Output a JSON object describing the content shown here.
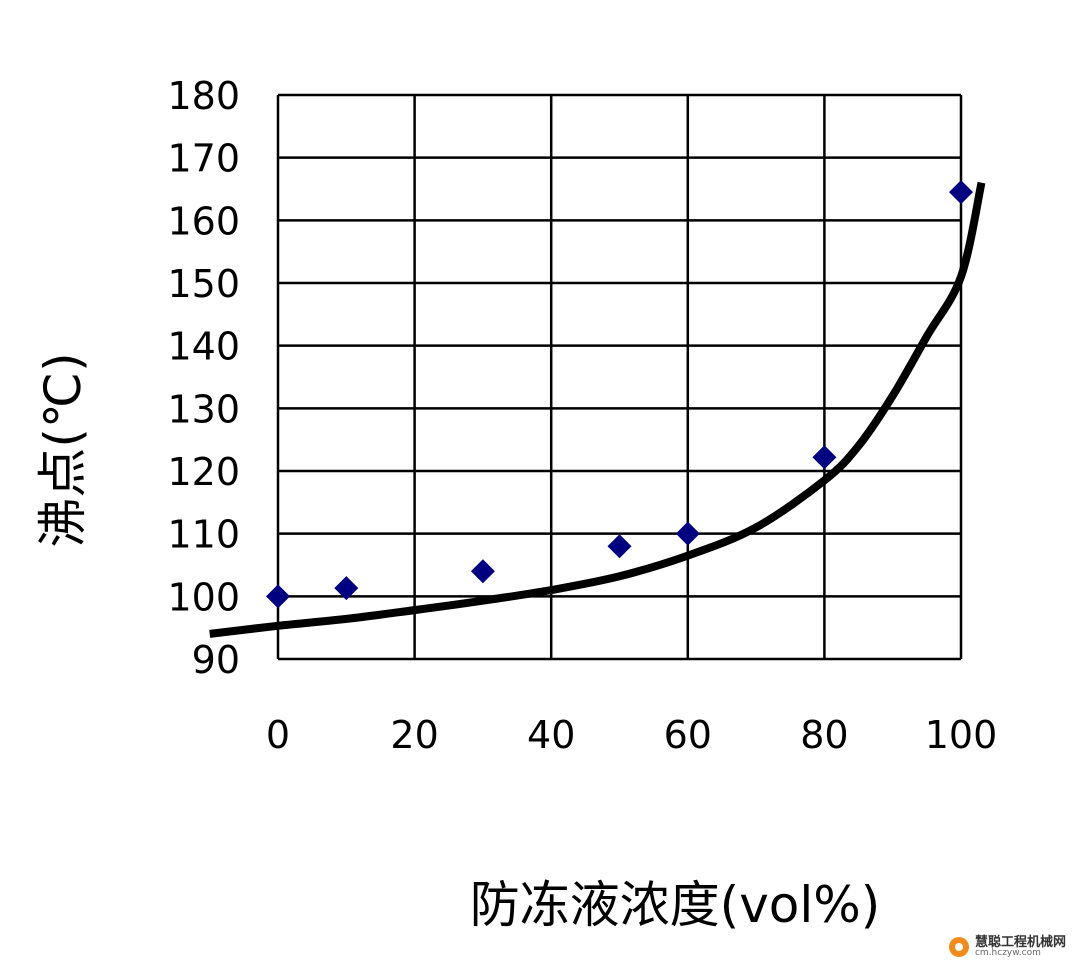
{
  "chart_data": {
    "type": "scatter",
    "title": "",
    "xlabel": "防冻液浓度(vol%)",
    "ylabel": "沸点(℃)",
    "xlim": [
      0,
      100
    ],
    "ylim": [
      90,
      180
    ],
    "x_ticks": [
      "0",
      "20",
      "40",
      "60",
      "80",
      "100"
    ],
    "y_ticks": [
      "90",
      "100",
      "110",
      "120",
      "130",
      "140",
      "150",
      "160",
      "170",
      "180"
    ],
    "grid": true,
    "legend": "none",
    "series": [
      {
        "kind": "points",
        "marker": "diamond",
        "color": "#000080",
        "x": [
          0,
          10,
          30,
          50,
          60,
          80,
          100
        ],
        "y": [
          100,
          101.3,
          104,
          108,
          110,
          122.2,
          164.5
        ]
      },
      {
        "kind": "trend-line",
        "color": "#000000",
        "x": [
          -10,
          0,
          10,
          20,
          30,
          40,
          50,
          60,
          70,
          80,
          85,
          90,
          95,
          100,
          103
        ],
        "y": [
          94,
          95.3,
          96.4,
          97.8,
          99.3,
          101,
          103.2,
          106.5,
          111,
          118.5,
          124,
          132,
          141.5,
          151,
          166
        ]
      }
    ]
  },
  "watermark": {
    "name": "慧聪工程机械网",
    "url": "cm.hczyw.com",
    "logo_icon": "hc-logo-icon"
  }
}
